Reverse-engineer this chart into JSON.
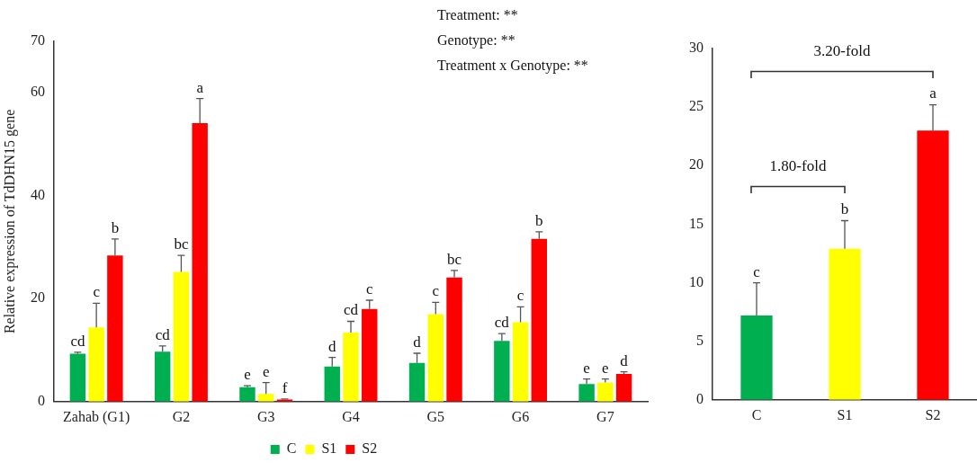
{
  "chart_data": [
    {
      "type": "bar",
      "ylabel": "Relative expression of TdDHN15 gene",
      "categories": [
        "Zahab (G1)",
        "G2",
        "G3",
        "G4",
        "G5",
        "G6",
        "G7"
      ],
      "series": [
        {
          "name": "C",
          "color": "#00b050",
          "values": [
            9.3,
            9.7,
            2.8,
            6.8,
            7.5,
            11.8,
            3.4
          ],
          "errors": [
            [
              9.3,
              9.6
            ],
            [
              9.7,
              10.8
            ],
            [
              2.8,
              3.1
            ],
            [
              6.8,
              8.6
            ],
            [
              7.5,
              9.4
            ],
            [
              11.8,
              13.2
            ],
            [
              3.4,
              4.4
            ]
          ],
          "value_labels": [
            "cd",
            "cd",
            "e",
            "d",
            "d",
            "cd",
            "e"
          ]
        },
        {
          "name": "S1",
          "color": "#ffff00",
          "values": [
            14.4,
            25.2,
            1.5,
            13.4,
            17.0,
            15.4,
            3.7
          ],
          "errors": [
            [
              14.4,
              19.1
            ],
            [
              25.2,
              28.4
            ],
            [
              1.5,
              3.7
            ],
            [
              13.4,
              15.6
            ],
            [
              17.0,
              19.3
            ],
            [
              15.4,
              18.4
            ],
            [
              3.7,
              4.4
            ]
          ],
          "value_labels": [
            "c",
            "bc",
            "e",
            "cd",
            "c",
            "c",
            "e"
          ]
        },
        {
          "name": "S2",
          "color": "#ff0000",
          "values": [
            28.4,
            54.1,
            0.4,
            18.0,
            24.1,
            31.6,
            5.4
          ],
          "errors": [
            [
              28.4,
              31.6
            ],
            [
              54.1,
              58.9
            ],
            [
              0.4,
              0.5
            ],
            [
              18.0,
              19.7
            ],
            [
              24.1,
              25.5
            ],
            [
              31.6,
              33.0
            ],
            [
              5.4,
              5.8
            ]
          ],
          "value_labels": [
            "b",
            "a",
            "f",
            "c",
            "bc",
            "b",
            "d"
          ]
        }
      ],
      "ylim": [
        0,
        70
      ],
      "yticks": [
        0,
        20,
        40,
        60,
        70
      ],
      "legend": "bottom",
      "annotations": [
        "Treatment: **",
        "Genotype: **",
        "Treatment x Genotype: **"
      ]
    },
    {
      "type": "bar",
      "categories": [
        "C",
        "S1",
        "S2"
      ],
      "values": [
        7.2,
        12.9,
        23.0
      ],
      "colors": [
        "#00b050",
        "#ffff00",
        "#ff0000"
      ],
      "errors": [
        [
          7.2,
          10.0
        ],
        [
          12.9,
          15.3
        ],
        [
          23.0,
          25.2
        ]
      ],
      "value_labels": [
        "c",
        "b",
        "a"
      ],
      "ylim": [
        0,
        30
      ],
      "yticks": [
        0,
        5,
        10,
        15,
        20,
        25,
        30
      ],
      "annotations": [
        "1.80-fold",
        "3.20-fold"
      ]
    }
  ]
}
